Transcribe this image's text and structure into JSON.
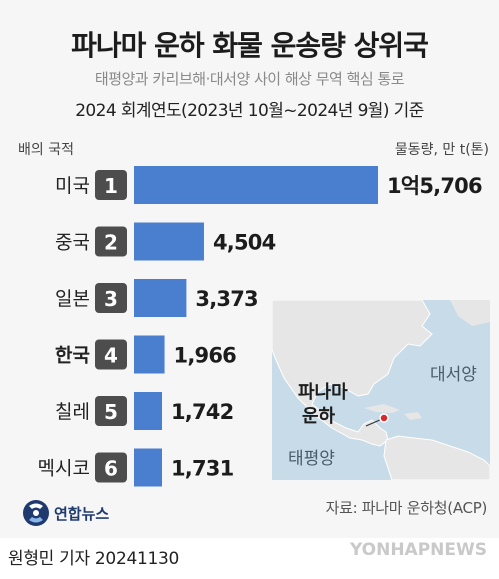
{
  "title": "파나마 운하 화물 운송량 상위국",
  "subtitle": "태평양과 카리브해·대서양 사이 해상 무역 핵심 통로",
  "basis": "2024 회계연도(2023년 10월~2024년 9월) 기준",
  "axis_left_label": "배의 국적",
  "axis_right_label": "물동량, 만 t(톤)",
  "map": {
    "atlantic_label": "대서양",
    "pacific_label": "태평양",
    "canal_label_line1": "파나마",
    "canal_label_line2": "운하"
  },
  "logo_text": "연합뉴스",
  "source": "자료: 파나마 운하청(ACP)",
  "reporter": "원형민 기자  20241130",
  "watermark": "YONHAPNEWS",
  "colors": {
    "bar": "#4a7fd0",
    "rank_badge": "#4d4d4d",
    "map_sea": "#c8dbe8",
    "map_land": "#e6e6e6",
    "canal_dot": "#d62a2a"
  },
  "chart_data": {
    "type": "bar",
    "orientation": "horizontal",
    "categories": [
      "미국",
      "중국",
      "일본",
      "한국",
      "칠레",
      "멕시코"
    ],
    "ranks": [
      "1",
      "2",
      "3",
      "4",
      "5",
      "6"
    ],
    "values": [
      15706,
      4504,
      3373,
      1966,
      1742,
      1731
    ],
    "value_labels": [
      "1억5,706",
      "4,504",
      "3,373",
      "1,966",
      "1,742",
      "1,731"
    ],
    "highlight": "한국",
    "unit": "만 t(톤)"
  }
}
